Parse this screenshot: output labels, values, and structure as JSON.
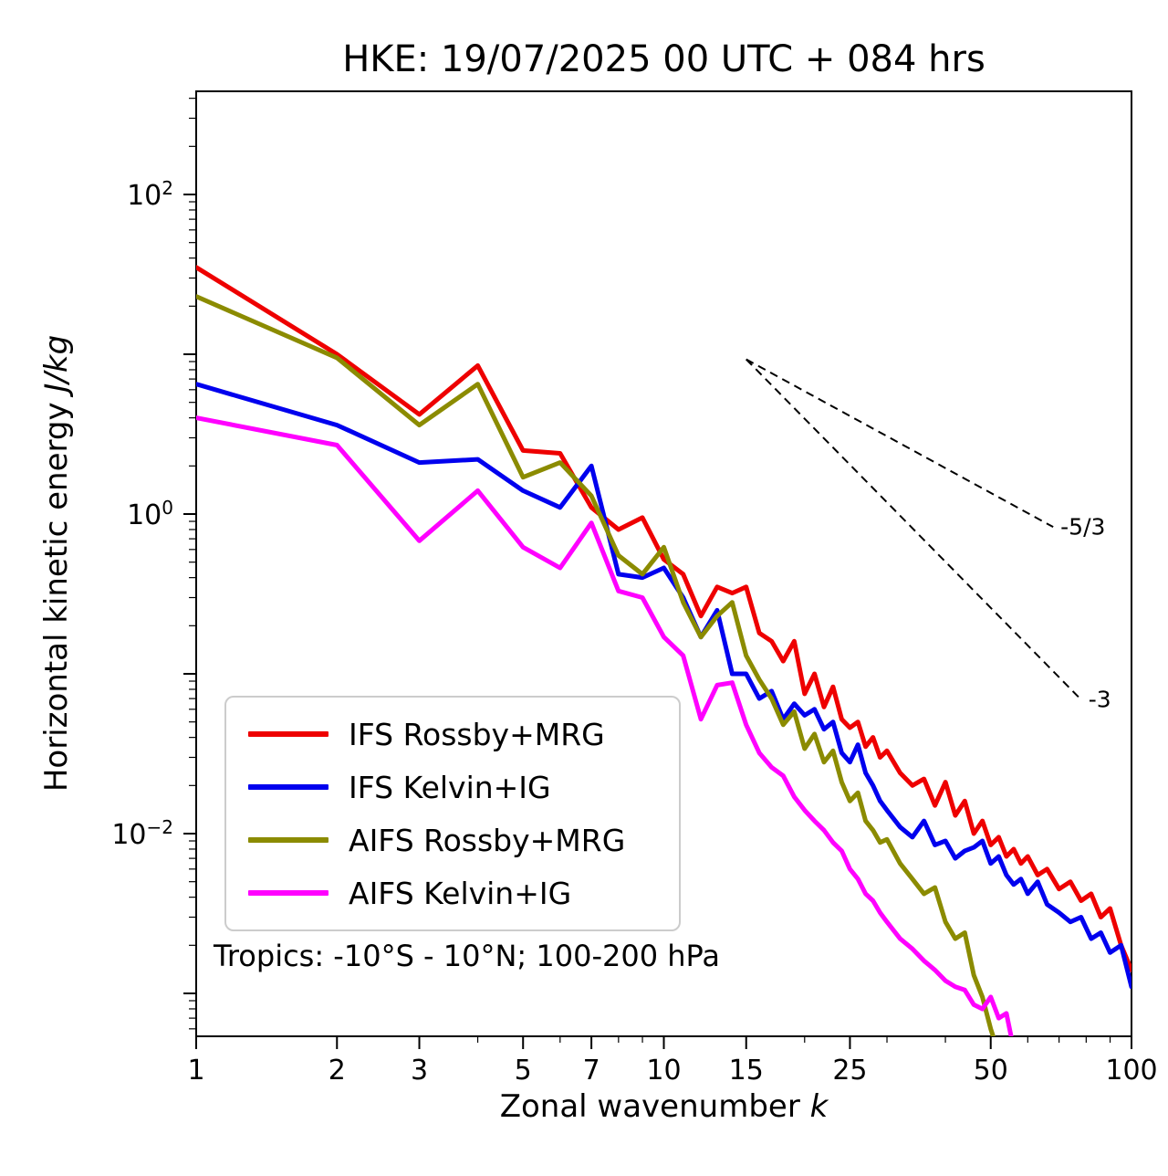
{
  "chart_data": {
    "type": "line",
    "title": "HKE: 19/07/2025 00 UTC + 084 hrs",
    "xlabel": "Zonal wavenumber k",
    "xlabel_text": "Zonal wavenumber ",
    "xlabel_math": "k",
    "ylabel": "Horizontal kinetic energy J/kg",
    "ylabel_text": "Horizontal kinetic energy ",
    "ylabel_math": "J/kg",
    "x_scale": "log",
    "y_scale": "log",
    "xlim": [
      1,
      100
    ],
    "ylim": [
      0.00054,
      443
    ],
    "x_ticks": [
      1,
      2,
      3,
      5,
      7,
      10,
      15,
      25,
      50,
      100
    ],
    "y_ticks": [
      100,
      1,
      0.01
    ],
    "y_tick_labels": [
      "10^2",
      "10^0",
      "10^-2"
    ],
    "grid": false,
    "legend_position": "lower left",
    "annotation": "Tropics: -10°S - 10°N; 100-200 hPa",
    "series": [
      {
        "name": "IFS Rossby+MRG",
        "color": "#ee0000",
        "x": [
          1,
          2,
          3,
          4,
          5,
          6,
          7,
          8,
          9,
          10,
          11,
          12,
          13,
          14,
          15,
          16,
          17,
          18,
          19,
          20,
          21,
          22,
          23,
          24,
          25,
          26,
          27,
          28,
          29,
          30,
          32,
          34,
          36,
          38,
          40,
          42,
          44,
          46,
          48,
          50,
          52,
          54,
          56,
          58,
          60,
          63,
          66,
          70,
          74,
          78,
          82,
          86,
          90,
          95,
          100
        ],
        "values": [
          35,
          10,
          4.2,
          8.5,
          2.5,
          2.4,
          1.1,
          0.8,
          0.95,
          0.52,
          0.42,
          0.23,
          0.35,
          0.32,
          0.35,
          0.18,
          0.16,
          0.12,
          0.16,
          0.075,
          0.1,
          0.062,
          0.083,
          0.052,
          0.046,
          0.05,
          0.035,
          0.04,
          0.03,
          0.033,
          0.024,
          0.02,
          0.022,
          0.015,
          0.021,
          0.013,
          0.016,
          0.01,
          0.012,
          0.0085,
          0.0095,
          0.0072,
          0.008,
          0.0065,
          0.0072,
          0.0055,
          0.006,
          0.0045,
          0.005,
          0.0038,
          0.0042,
          0.003,
          0.0034,
          0.002,
          0.0014
        ]
      },
      {
        "name": "IFS Kelvin+IG",
        "color": "#0000ee",
        "x": [
          1,
          2,
          3,
          4,
          5,
          6,
          7,
          8,
          9,
          10,
          11,
          12,
          13,
          14,
          15,
          16,
          17,
          18,
          19,
          20,
          21,
          22,
          23,
          24,
          25,
          26,
          27,
          28,
          29,
          30,
          32,
          34,
          36,
          38,
          40,
          42,
          44,
          46,
          48,
          50,
          52,
          54,
          56,
          58,
          60,
          63,
          66,
          70,
          74,
          78,
          82,
          86,
          90,
          95,
          100
        ],
        "values": [
          6.5,
          3.6,
          2.1,
          2.2,
          1.4,
          1.1,
          2.0,
          0.42,
          0.4,
          0.46,
          0.3,
          0.17,
          0.25,
          0.1,
          0.1,
          0.07,
          0.078,
          0.052,
          0.065,
          0.055,
          0.06,
          0.045,
          0.05,
          0.032,
          0.028,
          0.036,
          0.024,
          0.02,
          0.016,
          0.014,
          0.011,
          0.0095,
          0.012,
          0.0085,
          0.009,
          0.007,
          0.0078,
          0.0082,
          0.009,
          0.0065,
          0.0072,
          0.0055,
          0.0048,
          0.0052,
          0.0042,
          0.005,
          0.0036,
          0.0032,
          0.0028,
          0.003,
          0.0022,
          0.0024,
          0.0018,
          0.002,
          0.0011
        ]
      },
      {
        "name": "AIFS Rossby+MRG",
        "color": "#8b8b00",
        "x": [
          1,
          2,
          3,
          4,
          5,
          6,
          7,
          8,
          9,
          10,
          11,
          12,
          13,
          14,
          15,
          16,
          17,
          18,
          19,
          20,
          21,
          22,
          23,
          24,
          25,
          26,
          27,
          28,
          29,
          30,
          32,
          34,
          36,
          38,
          40,
          42,
          44,
          46,
          48,
          50,
          52
        ],
        "values": [
          23,
          9.5,
          3.6,
          6.5,
          1.7,
          2.1,
          1.3,
          0.55,
          0.42,
          0.62,
          0.28,
          0.17,
          0.23,
          0.28,
          0.13,
          0.092,
          0.07,
          0.048,
          0.058,
          0.034,
          0.042,
          0.028,
          0.033,
          0.021,
          0.016,
          0.018,
          0.012,
          0.0105,
          0.0088,
          0.0092,
          0.0065,
          0.0052,
          0.0042,
          0.0046,
          0.0028,
          0.0022,
          0.0024,
          0.0013,
          0.00095,
          0.0006,
          0.00042
        ]
      },
      {
        "name": "AIFS Kelvin+IG",
        "color": "#ff00ff",
        "x": [
          1,
          2,
          3,
          4,
          5,
          6,
          7,
          8,
          9,
          10,
          11,
          12,
          13,
          14,
          15,
          16,
          17,
          18,
          19,
          20,
          21,
          22,
          23,
          24,
          25,
          26,
          27,
          28,
          29,
          30,
          32,
          34,
          36,
          38,
          40,
          42,
          44,
          46,
          48,
          50,
          52,
          54,
          56
        ],
        "values": [
          4.0,
          2.7,
          0.68,
          1.4,
          0.62,
          0.46,
          0.88,
          0.33,
          0.3,
          0.17,
          0.13,
          0.052,
          0.085,
          0.088,
          0.048,
          0.032,
          0.026,
          0.023,
          0.017,
          0.014,
          0.012,
          0.0105,
          0.0088,
          0.0078,
          0.006,
          0.0052,
          0.0042,
          0.0038,
          0.0032,
          0.0028,
          0.0022,
          0.0019,
          0.0016,
          0.0014,
          0.0012,
          0.0011,
          0.00105,
          0.00085,
          0.0008,
          0.00095,
          0.0007,
          0.00075,
          0.00045
        ]
      }
    ],
    "reference_lines": [
      {
        "label": "-5/3",
        "slope": -1.667,
        "x": [
          15,
          68
        ],
        "y": [
          9.3,
          0.83
        ]
      },
      {
        "label": "-3",
        "slope": -3,
        "x": [
          15,
          78
        ],
        "y": [
          9.3,
          0.069
        ]
      }
    ]
  }
}
